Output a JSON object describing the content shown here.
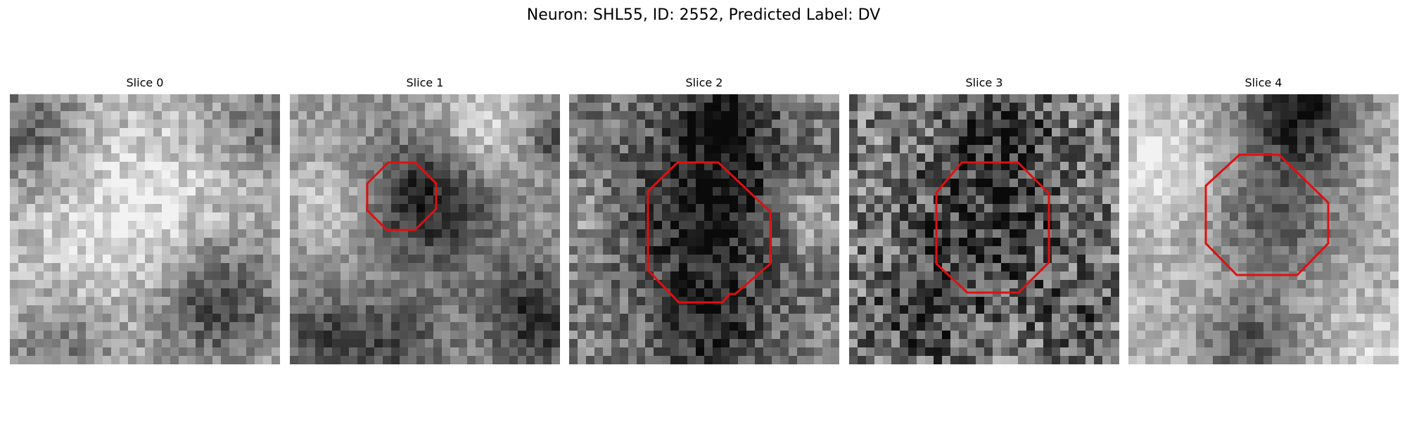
{
  "figure": {
    "suptitle": "Neuron: SHL55, ID: 2552, Predicted Label: DV",
    "roi_color": "#e01010"
  },
  "panels": [
    {
      "title": "Slice 0",
      "has_roi": false,
      "seed": 11
    },
    {
      "title": "Slice 1",
      "has_roi": true,
      "seed": 23
    },
    {
      "title": "Slice 2",
      "has_roi": true,
      "seed": 37
    },
    {
      "title": "Slice 3",
      "has_roi": true,
      "seed": 41
    },
    {
      "title": "Slice 4",
      "has_roi": true,
      "seed": 53
    }
  ]
}
